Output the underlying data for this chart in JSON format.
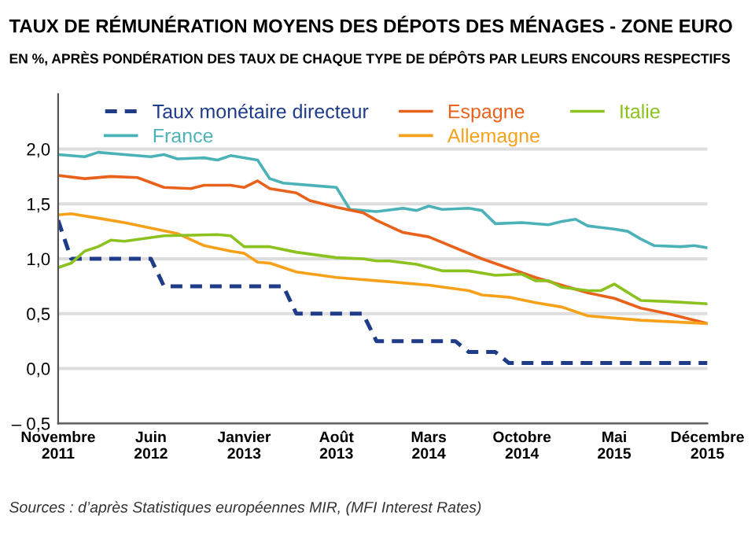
{
  "chart_data": {
    "type": "line",
    "title": "TAUX DE RÉMUNÉRATION MOYENS DES DÉPOTS DES MÉNAGES - ZONE EURO",
    "subtitle": "EN %, APRÈS PONDÉRATION DES TAUX DE CHAQUE TYPE DE DÉPÔTS PAR LEURS ENCOURS RESPECTIFS",
    "annotations": [
      "Sources : d’après Statistiques européennes MIR, (MFI Interest Rates)"
    ],
    "xlim": [
      "2011-11",
      "2015-12"
    ],
    "xticks": [
      {
        "value": "2011-11",
        "label": "Novembre\n2011"
      },
      {
        "value": "2012-06",
        "label": "Juin\n2012"
      },
      {
        "value": "2013-01",
        "label": "Janvier\n2013"
      },
      {
        "value": "2013-08",
        "label": "Août\n2013"
      },
      {
        "value": "2014-03",
        "label": "Mars\n2014"
      },
      {
        "value": "2014-10",
        "label": "Octobre\n2014"
      },
      {
        "value": "2015-05",
        "label": "Mai\n2015"
      },
      {
        "value": "2015-12",
        "label": "Décembre\n2015"
      }
    ],
    "ylim": [
      -0.5,
      2.5
    ],
    "yticks": [
      {
        "value": -0.5,
        "label": "– 0,5"
      },
      {
        "value": 0,
        "label": "0,0"
      },
      {
        "value": 0.5,
        "label": "0,5"
      },
      {
        "value": 1,
        "label": "1,0"
      },
      {
        "value": 1.5,
        "label": "1,5"
      },
      {
        "value": 2,
        "label": "2,0"
      }
    ],
    "grid": "y",
    "legend": "top",
    "series": [
      {
        "name": "Taux monétaire directeur",
        "color": "#1f3c88",
        "line_style": "dashed",
        "x": [
          "2011-11",
          "2011-12",
          "2012-06",
          "2012-07",
          "2013-04",
          "2013-05",
          "2013-10",
          "2013-11",
          "2014-05",
          "2014-06",
          "2014-08",
          "2014-09",
          "2015-12"
        ],
        "values": [
          1.35,
          1.0,
          1.0,
          0.75,
          0.75,
          0.5,
          0.5,
          0.25,
          0.25,
          0.15,
          0.15,
          0.05,
          0.05
        ]
      },
      {
        "name": "France",
        "color": "#4bb3b8",
        "x": [
          "2011-11",
          "2012-01",
          "2012-02",
          "2012-04",
          "2012-06",
          "2012-07",
          "2012-08",
          "2012-10",
          "2012-11",
          "2012-12",
          "2013-02",
          "2013-03",
          "2013-04",
          "2013-07",
          "2013-08",
          "2013-09",
          "2013-11",
          "2014-01",
          "2014-02",
          "2014-03",
          "2014-04",
          "2014-06",
          "2014-07",
          "2014-08",
          "2014-10",
          "2014-12",
          "2015-01",
          "2015-02",
          "2015-03",
          "2015-05",
          "2015-06",
          "2015-07",
          "2015-08",
          "2015-10",
          "2015-11",
          "2015-12"
        ],
        "values": [
          1.95,
          1.93,
          1.97,
          1.95,
          1.93,
          1.95,
          1.91,
          1.92,
          1.9,
          1.94,
          1.9,
          1.73,
          1.69,
          1.66,
          1.65,
          1.45,
          1.43,
          1.46,
          1.44,
          1.48,
          1.45,
          1.46,
          1.44,
          1.32,
          1.33,
          1.31,
          1.34,
          1.36,
          1.3,
          1.27,
          1.25,
          1.18,
          1.12,
          1.11,
          1.12,
          1.1
        ]
      },
      {
        "name": "Espagne",
        "color": "#e8621c",
        "x": [
          "2011-11",
          "2012-01",
          "2012-03",
          "2012-05",
          "2012-07",
          "2012-09",
          "2012-10",
          "2012-12",
          "2013-01",
          "2013-02",
          "2013-03",
          "2013-05",
          "2013-06",
          "2013-08",
          "2013-10",
          "2013-11",
          "2014-01",
          "2014-03",
          "2014-07",
          "2014-11",
          "2015-03",
          "2015-05",
          "2015-07",
          "2015-09",
          "2015-12"
        ],
        "values": [
          1.76,
          1.73,
          1.75,
          1.74,
          1.65,
          1.64,
          1.67,
          1.67,
          1.65,
          1.71,
          1.64,
          1.6,
          1.53,
          1.47,
          1.42,
          1.35,
          1.24,
          1.2,
          1.0,
          0.83,
          0.69,
          0.64,
          0.55,
          0.5,
          0.41
        ]
      },
      {
        "name": "Allemagne",
        "color": "#f7a11a",
        "x": [
          "2011-11",
          "2011-12",
          "2012-02",
          "2012-04",
          "2012-06",
          "2012-08",
          "2012-10",
          "2012-12",
          "2013-01",
          "2013-02",
          "2013-03",
          "2013-05",
          "2013-08",
          "2013-10",
          "2013-11",
          "2014-03",
          "2014-06",
          "2014-07",
          "2014-09",
          "2014-11",
          "2015-01",
          "2015-03",
          "2015-05",
          "2015-07",
          "2015-12"
        ],
        "values": [
          1.4,
          1.41,
          1.37,
          1.33,
          1.28,
          1.23,
          1.12,
          1.07,
          1.05,
          0.97,
          0.96,
          0.88,
          0.83,
          0.81,
          0.8,
          0.76,
          0.71,
          0.67,
          0.65,
          0.6,
          0.56,
          0.48,
          0.46,
          0.44,
          0.41
        ]
      },
      {
        "name": "Italie",
        "color": "#8cc21f",
        "x": [
          "2011-11",
          "2011-12",
          "2012-01",
          "2012-02",
          "2012-03",
          "2012-04",
          "2012-07",
          "2012-11",
          "2012-12",
          "2013-01",
          "2013-03",
          "2013-05",
          "2013-08",
          "2013-10",
          "2013-11",
          "2013-12",
          "2014-02",
          "2014-04",
          "2014-06",
          "2014-08",
          "2014-10",
          "2014-11",
          "2014-12",
          "2015-01",
          "2015-03",
          "2015-04",
          "2015-05",
          "2015-07",
          "2015-09",
          "2015-12"
        ],
        "values": [
          0.92,
          0.96,
          1.07,
          1.11,
          1.17,
          1.16,
          1.21,
          1.22,
          1.21,
          1.11,
          1.11,
          1.06,
          1.01,
          1.0,
          0.98,
          0.98,
          0.95,
          0.89,
          0.89,
          0.85,
          0.86,
          0.8,
          0.8,
          0.74,
          0.71,
          0.71,
          0.77,
          0.62,
          0.61,
          0.59
        ]
      }
    ]
  }
}
